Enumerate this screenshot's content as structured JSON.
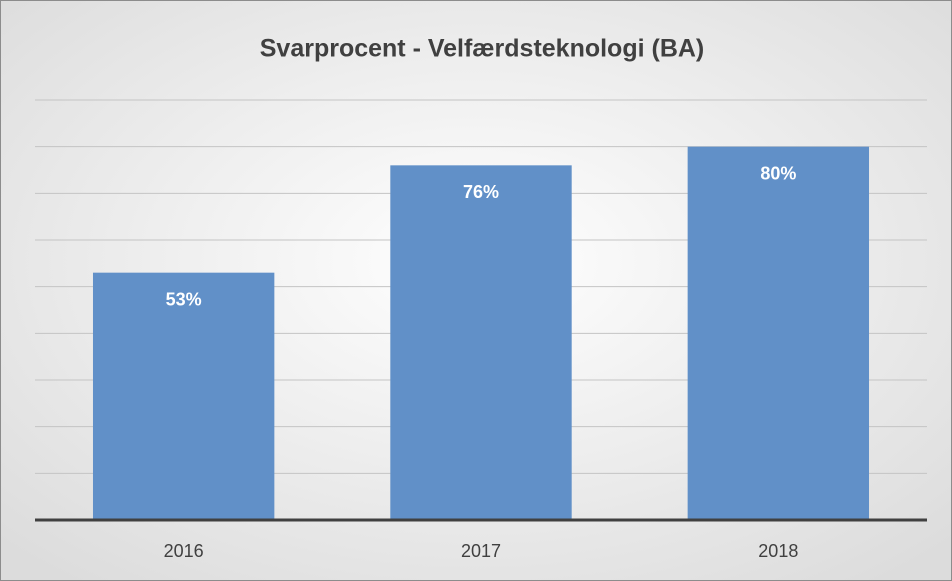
{
  "chart_data": {
    "type": "bar",
    "title": "Svarprocent - Velfærdsteknologi (BA)",
    "categories": [
      "2016",
      "2017",
      "2018"
    ],
    "values": [
      53,
      76,
      80
    ],
    "value_labels": [
      "53%",
      "76%",
      "80%"
    ],
    "color": "#6190c8",
    "ylim": [
      0,
      90
    ],
    "yticks": [
      0,
      10,
      20,
      30,
      40,
      50,
      60,
      70,
      80,
      90
    ],
    "grid": true
  }
}
